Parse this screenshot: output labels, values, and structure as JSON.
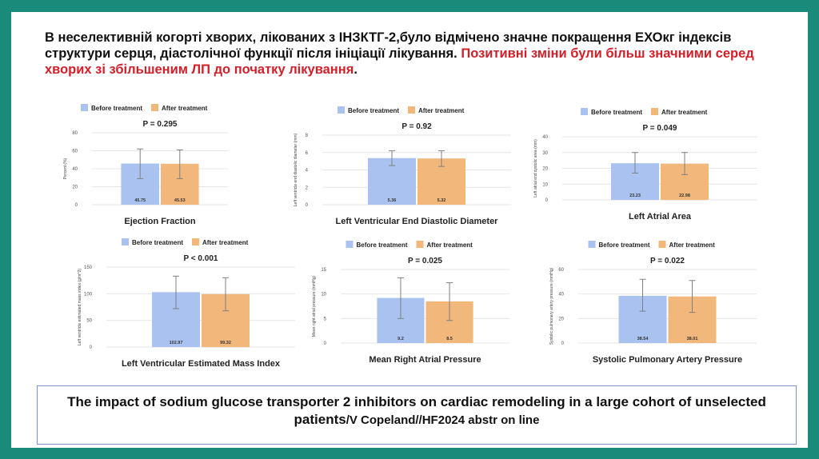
{
  "headline": {
    "black": "В неселективній когорті хворих, лікованих з ІНЗКТГ-2,було відмічено значне покращення ЕХОкг індексів   структури серця, діастолічної функції після ініціації лікування.",
    "red": "Позитивні зміни були більш значними серед хворих зі збільшеним ЛП до початку лікування",
    "tail": "."
  },
  "legend": {
    "before": "Before treatment",
    "after": "After treatment"
  },
  "colors": {
    "before": "#a9c2ef",
    "after": "#f2b77a",
    "error": "#808080",
    "grid": "#e6e6e6",
    "text": "#222222"
  },
  "chart_data": [
    {
      "type": "bar",
      "title": "Ejection Fraction",
      "ylabel": "Percent (%)",
      "ylim": [
        0,
        80
      ],
      "ticks": [
        0,
        20,
        40,
        60,
        80
      ],
      "categories": [
        "Before treatment",
        "After treatment"
      ],
      "values": [
        45.75,
        45.53
      ],
      "labels": [
        "45.75",
        "45.53"
      ],
      "err": [
        [
          29,
          62
        ],
        [
          29,
          61
        ]
      ],
      "p": "P = 0.295"
    },
    {
      "type": "bar",
      "title": "Left Ventricular End Diastolic Diameter",
      "ylabel": "Left ventricle end diastolic diameter (mm)",
      "ylim": [
        0,
        8
      ],
      "ticks": [
        0,
        2,
        4,
        6,
        8
      ],
      "categories": [
        "Before treatment",
        "After treatment"
      ],
      "values": [
        5.36,
        5.32
      ],
      "labels": [
        "5.36",
        "5.32"
      ],
      "err": [
        [
          4.5,
          6.2
        ],
        [
          4.4,
          6.2
        ]
      ],
      "p": "P = 0.92"
    },
    {
      "type": "bar",
      "title": "Left Atrial Area",
      "ylabel": "Left atrial end systolic area (mm)",
      "ylim": [
        0,
        40
      ],
      "ticks": [
        0,
        10,
        20,
        30,
        40
      ],
      "categories": [
        "Before treatment",
        "After treatment"
      ],
      "values": [
        23.23,
        22.98
      ],
      "labels": [
        "23.23",
        "22.98"
      ],
      "err": [
        [
          17,
          30
        ],
        [
          16,
          30
        ]
      ],
      "p": "P = 0.049"
    },
    {
      "type": "bar",
      "title": "Left Ventricular Estimated Mass Index",
      "ylabel": "Left ventricle estimated mass index (g/m^2)",
      "ylim": [
        0,
        150
      ],
      "ticks": [
        0,
        50,
        100,
        150
      ],
      "categories": [
        "Before treatment",
        "After treatment"
      ],
      "values": [
        102.97,
        99.32
      ],
      "labels": [
        "102.97",
        "99.32"
      ],
      "err": [
        [
          72,
          133
        ],
        [
          68,
          130
        ]
      ],
      "p": "P < 0.001"
    },
    {
      "type": "bar",
      "title": "Mean Right Atrial Pressure",
      "ylabel": "Mean right atrial pressure (mmHg)",
      "ylim": [
        0,
        15
      ],
      "ticks": [
        0,
        5,
        10,
        15
      ],
      "categories": [
        "Before treatment",
        "After treatment"
      ],
      "values": [
        9.2,
        8.5
      ],
      "labels": [
        "9.2",
        "8.5"
      ],
      "err": [
        [
          5,
          13.3
        ],
        [
          4.6,
          12.3
        ]
      ],
      "p": "P = 0.025"
    },
    {
      "type": "bar",
      "title": "Systolic Pulmonary Artery Pressure",
      "ylabel": "Systolic pulmonary artery pressure (mmHg)",
      "ylim": [
        0,
        60
      ],
      "ticks": [
        0,
        20,
        40,
        60
      ],
      "categories": [
        "Before treatment",
        "After treatment"
      ],
      "values": [
        38.54,
        38.01
      ],
      "labels": [
        "38.54",
        "38.01"
      ],
      "err": [
        [
          26,
          52
        ],
        [
          25,
          51
        ]
      ],
      "p": "P = 0.022"
    }
  ],
  "caption": {
    "main": "The impact of sodium glucose transporter 2 inhibitors on cardiac remodeling in a large cohort of unselected patients",
    "source": "/V Copeland//HF2024 abstr on line"
  }
}
